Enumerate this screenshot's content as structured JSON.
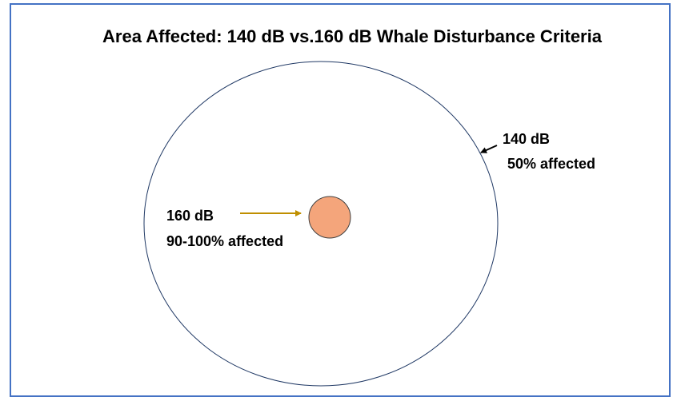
{
  "title": "Area Affected: 140 dB vs.160 dB Whale Disturbance Criteria",
  "zones": [
    {
      "level": "140 dB",
      "note": "50% affected"
    },
    {
      "level": "160 dB",
      "note": "90-100% affected"
    }
  ]
}
